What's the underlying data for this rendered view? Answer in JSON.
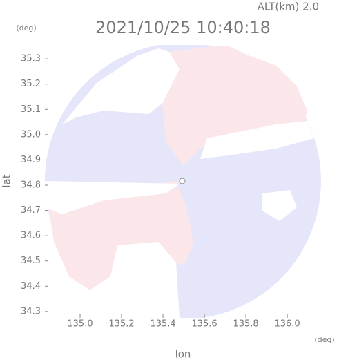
{
  "chart_data": {
    "type": "radar-map",
    "title": "2021/10/25 10:40:18",
    "annotation": "ALT(km) 2.0",
    "xlabel": "lon",
    "ylabel": "lat",
    "xunit": "(deg)",
    "yunit": "(deg)",
    "xlim": [
      134.83,
      136.163
    ],
    "ylim": [
      34.275,
      35.355
    ],
    "xticks": [
      {
        "value": 135,
        "label": "135.0"
      },
      135.2,
      135.4,
      135.6,
      135.8,
      {
        "value": 136,
        "label": "136.0"
      }
    ],
    "yticks": [
      34.3,
      34.4,
      34.5,
      34.6,
      34.7,
      {
        "value": 34.8,
        "label": "34.8"
      },
      34.9,
      {
        "value": 35,
        "label": "35.0"
      },
      35.1,
      35.2,
      35.3
    ]
  }
}
